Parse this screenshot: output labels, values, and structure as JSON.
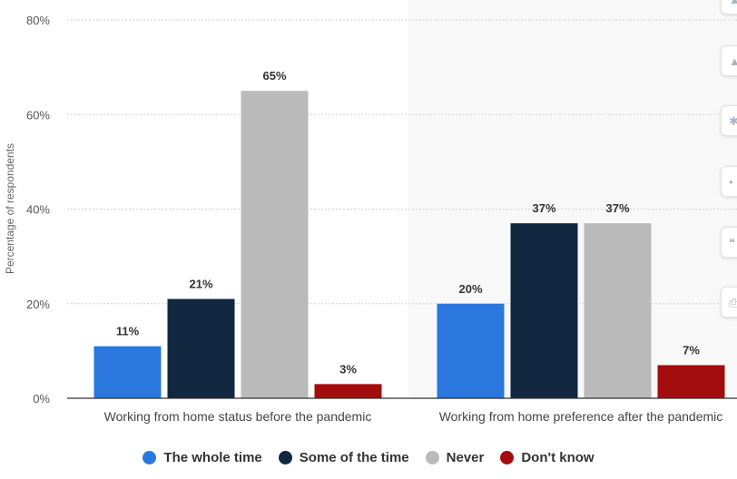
{
  "chart_data": {
    "type": "bar",
    "title": "",
    "xlabel": "",
    "ylabel": "Percentage of respondents",
    "ylim": [
      0,
      80
    ],
    "yticks": [
      0,
      20,
      40,
      60,
      80
    ],
    "ytick_labels": [
      "0%",
      "20%",
      "40%",
      "60%",
      "80%"
    ],
    "grid": true,
    "legend_position": "bottom-center",
    "categories": [
      "Working from home status before the pandemic",
      "Working from home preference after the pandemic"
    ],
    "series": [
      {
        "name": "The whole time",
        "color": "#2a77de",
        "values": [
          11,
          20
        ],
        "labels": [
          "11%",
          "20%"
        ]
      },
      {
        "name": "Some of the time",
        "color": "#122740",
        "values": [
          21,
          37
        ],
        "labels": [
          "21%",
          "37%"
        ]
      },
      {
        "name": "Never",
        "color": "#bababa",
        "values": [
          65,
          37
        ],
        "labels": [
          "65%",
          "37%"
        ]
      },
      {
        "name": "Don't know",
        "color": "#a30d0d",
        "values": [
          3,
          7
        ],
        "labels": [
          "3%",
          "7%"
        ]
      }
    ]
  },
  "toolbar": {
    "icons": [
      "bell-icon",
      "star-icon",
      "gear-icon",
      "share-icon",
      "quote-icon",
      "print-icon"
    ]
  }
}
